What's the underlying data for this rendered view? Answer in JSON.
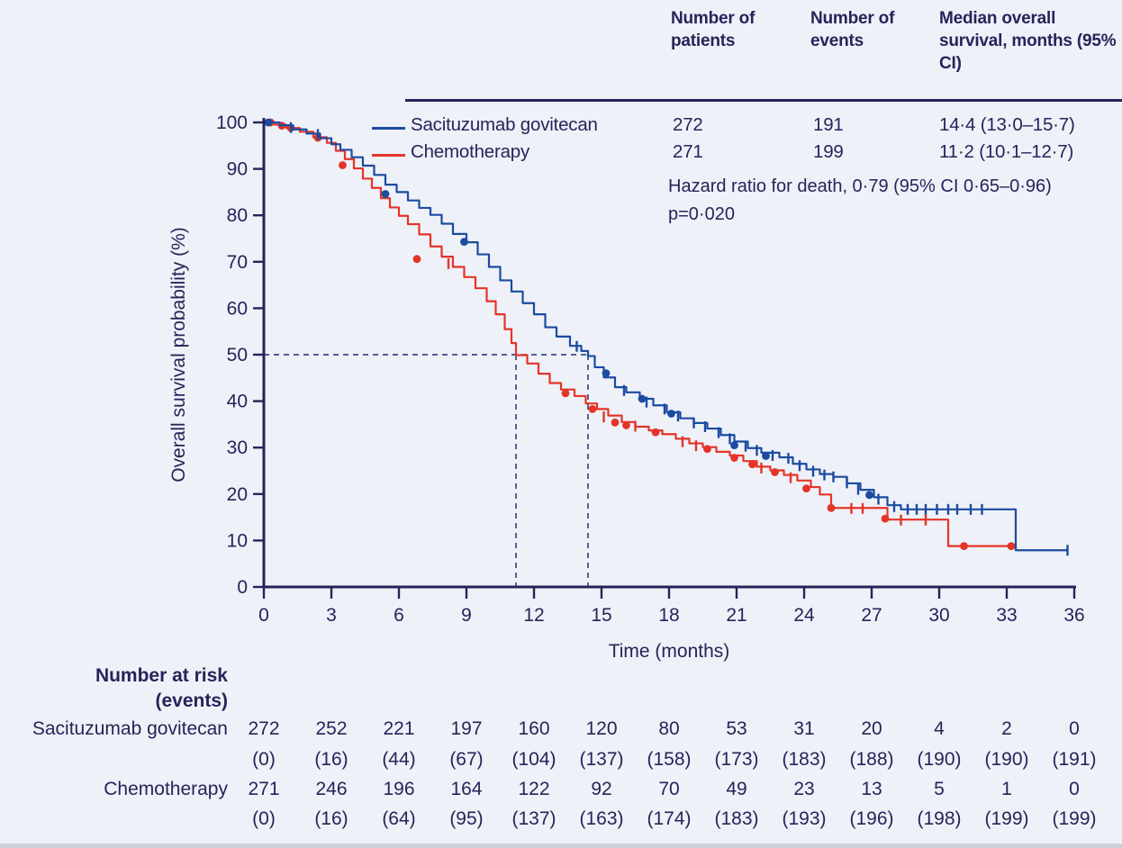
{
  "figure": {
    "background_color": "#eef1f8",
    "text_color": "#262459",
    "stats_table": {
      "col_headers": [
        "Number of patients",
        "Number of events",
        "Median overall survival, months (95% CI)"
      ],
      "rows": [
        {
          "name": "Sacituzumab govitecan",
          "color": "#1c4ba0",
          "patients": "272",
          "events": "191",
          "median": "14·4 (13·0–15·7)"
        },
        {
          "name": "Chemotherapy",
          "color": "#e43428",
          "patients": "271",
          "events": "199",
          "median": "11·2 (10·1–12·7)"
        }
      ],
      "hazard_line1": "Hazard ratio for death, 0·79 (95% CI 0·65–0·96)",
      "hazard_line2": "p=0·020"
    }
  },
  "chart_data": {
    "type": "line",
    "subtype": "kaplan-meier-step",
    "title": "",
    "xlabel": "Time (months)",
    "ylabel": "Overall survival probability (%)",
    "xlim": [
      0,
      36
    ],
    "ylim": [
      0,
      100
    ],
    "xticks": [
      0,
      3,
      6,
      9,
      12,
      15,
      18,
      21,
      24,
      27,
      30,
      33,
      36
    ],
    "yticks": [
      0,
      10,
      20,
      30,
      40,
      50,
      60,
      70,
      80,
      90,
      100
    ],
    "grid": false,
    "hazard_ratio": 0.79,
    "hazard_ratio_ci": "0.65–0.96",
    "p_value": "0·020",
    "median_guides": {
      "y_pct": 50,
      "x_months": [
        11.2,
        14.4
      ],
      "color": "#3a4a85"
    },
    "series": [
      {
        "name": "Sacituzumab govitecan",
        "color": "#1c4ba0",
        "n_patients": 272,
        "n_events": 191,
        "median_months": 14.4,
        "median_ci": [
          13.0,
          15.7
        ],
        "points": [
          [
            0,
            100
          ],
          [
            0.7,
            99.4
          ],
          [
            1.3,
            98.5
          ],
          [
            1.9,
            97.6
          ],
          [
            2.5,
            96.6
          ],
          [
            3,
            95.3
          ],
          [
            3.4,
            94.1
          ],
          [
            3.9,
            92.5
          ],
          [
            4.4,
            90.7
          ],
          [
            4.9,
            88.7
          ],
          [
            5.4,
            86.6
          ],
          [
            5.9,
            85
          ],
          [
            6.4,
            83.2
          ],
          [
            6.9,
            81.6
          ],
          [
            7.4,
            80.1
          ],
          [
            7.9,
            78.2
          ],
          [
            8.4,
            76
          ],
          [
            9,
            74.2
          ],
          [
            9.5,
            71.6
          ],
          [
            10,
            68.9
          ],
          [
            10.5,
            66
          ],
          [
            11,
            63.6
          ],
          [
            11.5,
            61.1
          ],
          [
            12,
            58.7
          ],
          [
            12.5,
            55.9
          ],
          [
            13,
            53.9
          ],
          [
            13.6,
            51.9
          ],
          [
            14.1,
            50.8
          ],
          [
            14.4,
            49.7
          ],
          [
            14.7,
            47.3
          ],
          [
            15.1,
            45.1
          ],
          [
            15.6,
            43
          ],
          [
            16.1,
            41.9
          ],
          [
            16.7,
            40.5
          ],
          [
            17.3,
            39.1
          ],
          [
            17.9,
            37.6
          ],
          [
            18.5,
            36.3
          ],
          [
            19.1,
            35.3
          ],
          [
            19.7,
            34.1
          ],
          [
            20.3,
            32.7
          ],
          [
            20.9,
            31.3
          ],
          [
            21.5,
            29.9
          ],
          [
            22.1,
            28.9
          ],
          [
            22.9,
            27.9
          ],
          [
            23.5,
            26.5
          ],
          [
            24.1,
            25.3
          ],
          [
            24.7,
            24.3
          ],
          [
            25.3,
            23.7
          ],
          [
            25.9,
            22.3
          ],
          [
            26.5,
            20.9
          ],
          [
            27.1,
            19.3
          ],
          [
            27.7,
            17.6
          ],
          [
            28.3,
            16.7
          ],
          [
            33.4,
            7.9
          ],
          [
            35.7,
            7.9
          ]
        ],
        "event_dots": [
          [
            0.2,
            100
          ],
          [
            5.4,
            84.6
          ],
          [
            8.9,
            74.3
          ],
          [
            15.2,
            46
          ],
          [
            16.8,
            40.5
          ],
          [
            18.1,
            37.3
          ],
          [
            20.9,
            30.5
          ],
          [
            22.3,
            28.2
          ],
          [
            26.9,
            19.8
          ]
        ],
        "censor_ticks": [
          [
            1.2,
            98.9
          ],
          [
            2.4,
            97.4
          ],
          [
            13.9,
            51.8
          ],
          [
            16,
            42.3
          ],
          [
            17,
            39.8
          ],
          [
            17.8,
            38.3
          ],
          [
            18.4,
            36.8
          ],
          [
            19.1,
            35.3
          ],
          [
            19.6,
            34.5
          ],
          [
            20.2,
            33.2
          ],
          [
            20.7,
            31.9
          ],
          [
            21.4,
            30.3
          ],
          [
            21.9,
            29.4
          ],
          [
            22.6,
            28.3
          ],
          [
            23.3,
            27.7
          ],
          [
            23.8,
            26.1
          ],
          [
            24.4,
            24.9
          ],
          [
            24.9,
            24.1
          ],
          [
            25.3,
            23.7
          ],
          [
            25.9,
            22.4
          ],
          [
            26.4,
            21
          ],
          [
            27.3,
            18.9
          ],
          [
            28,
            17.3
          ],
          [
            28.6,
            16.7
          ],
          [
            29,
            16.7
          ],
          [
            29.4,
            16.7
          ],
          [
            29.9,
            16.7
          ],
          [
            30.4,
            16.7
          ],
          [
            30.8,
            16.7
          ],
          [
            31.4,
            16.7
          ],
          [
            31.9,
            16.7
          ],
          [
            35.7,
            7.9
          ]
        ]
      },
      {
        "name": "Chemotherapy",
        "color": "#e43428",
        "n_patients": 271,
        "n_events": 199,
        "median_months": 11.2,
        "median_ci": [
          10.1,
          12.7
        ],
        "points": [
          [
            0,
            100
          ],
          [
            0.5,
            99.5
          ],
          [
            1,
            98.8
          ],
          [
            1.6,
            98
          ],
          [
            2.2,
            96.8
          ],
          [
            2.8,
            95.6
          ],
          [
            3.2,
            93.9
          ],
          [
            3.6,
            92.1
          ],
          [
            4,
            90.1
          ],
          [
            4.4,
            87.9
          ],
          [
            4.8,
            85.9
          ],
          [
            5.2,
            83.7
          ],
          [
            5.6,
            81.7
          ],
          [
            6,
            79.9
          ],
          [
            6.4,
            78.1
          ],
          [
            6.9,
            75.9
          ],
          [
            7.4,
            73.3
          ],
          [
            7.9,
            71.1
          ],
          [
            8.4,
            68.9
          ],
          [
            8.9,
            66.7
          ],
          [
            9.4,
            64.3
          ],
          [
            9.9,
            61.5
          ],
          [
            10.3,
            58.7
          ],
          [
            10.7,
            55.5
          ],
          [
            11,
            52.5
          ],
          [
            11.2,
            49.9
          ],
          [
            11.7,
            48.1
          ],
          [
            12.2,
            45.9
          ],
          [
            12.7,
            43.9
          ],
          [
            13.2,
            42.5
          ],
          [
            13.8,
            41.1
          ],
          [
            14.3,
            39.5
          ],
          [
            14.8,
            38.3
          ],
          [
            15.3,
            36.9
          ],
          [
            15.9,
            35.5
          ],
          [
            16.5,
            34.5
          ],
          [
            17.1,
            33.7
          ],
          [
            17.7,
            32.9
          ],
          [
            18.3,
            31.9
          ],
          [
            18.9,
            30.9
          ],
          [
            19.5,
            30.1
          ],
          [
            20.1,
            29.1
          ],
          [
            20.7,
            28.3
          ],
          [
            21.3,
            27.1
          ],
          [
            21.9,
            25.9
          ],
          [
            22.5,
            25.1
          ],
          [
            23.1,
            24.1
          ],
          [
            23.7,
            22.9
          ],
          [
            24.3,
            21.5
          ],
          [
            24.7,
            19.9
          ],
          [
            25.2,
            17
          ],
          [
            27.7,
            14.5
          ],
          [
            30.4,
            8.8
          ],
          [
            33.3,
            8.8
          ]
        ],
        "event_dots": [
          [
            0.3,
            100
          ],
          [
            0.8,
            99.3
          ],
          [
            1.2,
            98.8
          ],
          [
            2.4,
            96.7
          ],
          [
            3.5,
            90.8
          ],
          [
            6.8,
            70.6
          ],
          [
            13.4,
            41.7
          ],
          [
            14.6,
            38.3
          ],
          [
            15.6,
            35.4
          ],
          [
            16.1,
            34.8
          ],
          [
            17.4,
            33.3
          ],
          [
            19.7,
            29.7
          ],
          [
            20.9,
            27.8
          ],
          [
            21.7,
            26.4
          ],
          [
            22.7,
            24.7
          ],
          [
            24.1,
            21.2
          ],
          [
            25.2,
            17
          ],
          [
            27.6,
            14.7
          ],
          [
            31.1,
            8.8
          ],
          [
            33.2,
            8.8
          ]
        ],
        "censor_ticks": [
          [
            8.2,
            69.6
          ],
          [
            15.1,
            36.6
          ],
          [
            16.5,
            34.6
          ],
          [
            18.6,
            31.3
          ],
          [
            19.2,
            30.4
          ],
          [
            22.1,
            25.6
          ],
          [
            23.4,
            23.5
          ],
          [
            26.1,
            16.9
          ],
          [
            26.6,
            16.9
          ],
          [
            28.3,
            14.4
          ],
          [
            29.4,
            14.4
          ]
        ]
      }
    ],
    "risk_table": {
      "header_line1": "Number at risk",
      "header_line2": "(events)",
      "time_points": [
        0,
        3,
        6,
        9,
        12,
        15,
        18,
        21,
        24,
        27,
        30,
        33,
        36
      ],
      "rows": [
        {
          "label": "Sacituzumab govitecan",
          "at_risk": [
            272,
            252,
            221,
            197,
            160,
            120,
            80,
            53,
            31,
            20,
            4,
            2,
            0
          ],
          "events": [
            0,
            16,
            44,
            67,
            104,
            137,
            158,
            173,
            183,
            188,
            190,
            190,
            191
          ]
        },
        {
          "label": "Chemotherapy",
          "at_risk": [
            271,
            246,
            196,
            164,
            122,
            92,
            70,
            49,
            23,
            13,
            5,
            1,
            0
          ],
          "events": [
            0,
            16,
            64,
            95,
            137,
            163,
            174,
            183,
            193,
            196,
            198,
            199,
            199
          ]
        }
      ]
    }
  }
}
